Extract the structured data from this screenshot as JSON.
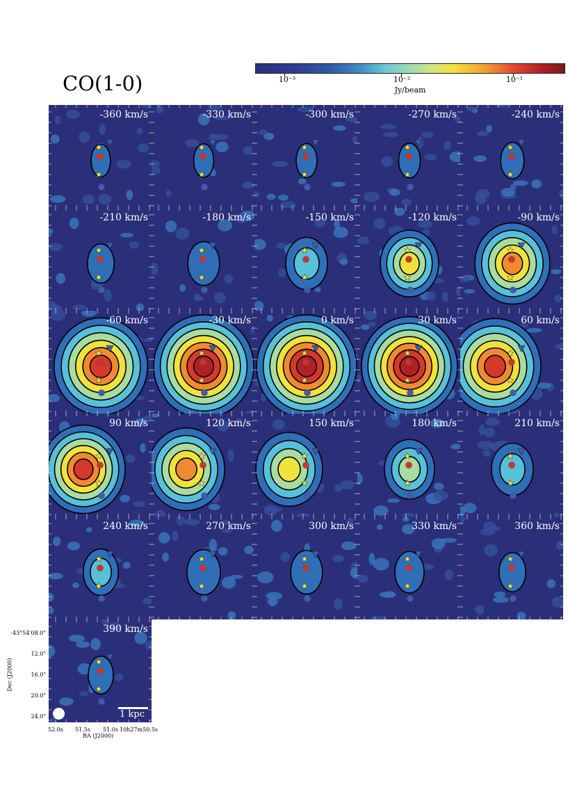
{
  "figure": {
    "title": "CO(1-0)",
    "colorbar": {
      "label": "Jy/beam",
      "ticks": [
        "10⁻³",
        "10⁻²",
        "10⁻¹"
      ],
      "scale": "log",
      "colormap": "jet-like",
      "colors": [
        "#2a2f7e",
        "#3d8fc4",
        "#9fdcb0",
        "#f5e039",
        "#e0472b",
        "#7a1a1e"
      ]
    },
    "channels": [
      {
        "label": "-360 km/s",
        "level": 0.03
      },
      {
        "label": "-330 km/s",
        "level": 0.04
      },
      {
        "label": "-300 km/s",
        "level": 0.05
      },
      {
        "label": "-270 km/s",
        "level": 0.06
      },
      {
        "label": "-240 km/s",
        "level": 0.08
      },
      {
        "label": "-210 km/s",
        "level": 0.12
      },
      {
        "label": "-180 km/s",
        "level": 0.18
      },
      {
        "label": "-150 km/s",
        "level": 0.3
      },
      {
        "label": "-120 km/s",
        "level": 0.5
      },
      {
        "label": "-90 km/s",
        "level": 0.7
      },
      {
        "label": "-60 km/s",
        "level": 0.92
      },
      {
        "label": "-30 km/s",
        "level": 1.0
      },
      {
        "label": "0 km/s",
        "level": 1.0
      },
      {
        "label": "30 km/s",
        "level": 0.95
      },
      {
        "label": "60 km/s",
        "level": 0.9
      },
      {
        "label": "90 km/s",
        "level": 0.8
      },
      {
        "label": "120 km/s",
        "level": 0.72
      },
      {
        "label": "150 km/s",
        "level": 0.6
      },
      {
        "label": "180 km/s",
        "level": 0.4
      },
      {
        "label": "210 km/s",
        "level": 0.3
      },
      {
        "label": "240 km/s",
        "level": 0.22
      },
      {
        "label": "270 km/s",
        "level": 0.2
      },
      {
        "label": "300 km/s",
        "level": 0.18
      },
      {
        "label": "330 km/s",
        "level": 0.15
      },
      {
        "label": "360 km/s",
        "level": 0.12
      },
      {
        "label": "390 km/s",
        "level": 0.1
      }
    ],
    "axes": {
      "dec_label": "Dec (J2000)",
      "ra_label": "RA (J2000)",
      "dec_ticks": [
        "-43°54'08.0\"",
        "12.0\"",
        "16.0\"",
        "20.0\"",
        "24.0\""
      ],
      "ra_ticks": [
        "52.0s",
        "51.5s",
        "51.0s",
        "10h27m50.5s"
      ]
    },
    "scale_bar": "1 kpc"
  }
}
